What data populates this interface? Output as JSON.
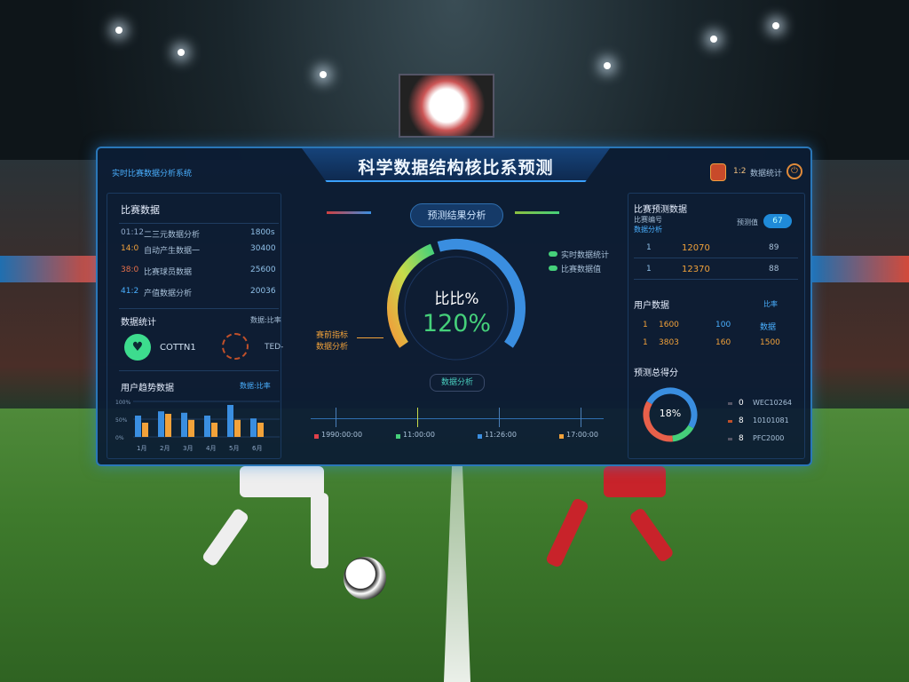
{
  "header": {
    "title": "科学数据结构核比系预测",
    "left_caption": "实时比赛数据分析系统",
    "score": "1:2",
    "score_label": "数据统计"
  },
  "left": {
    "match_title": "比赛数据",
    "rows": [
      {
        "time": "01:12",
        "label": "二三元数据分析",
        "value": "1800s"
      },
      {
        "time": "14:0",
        "label": "自动产生数据一",
        "value": "30400"
      },
      {
        "time": "38:0",
        "label": "比赛球员数据",
        "value": "25600"
      },
      {
        "time": "41:2",
        "label": "产值数据分析",
        "value": "20036"
      }
    ],
    "stats_title": "数据统计",
    "stats_meta": "数据:比率",
    "stats_value": "COTTN1",
    "stats_side": "TED-",
    "trend_title": "用户趋势数据",
    "trend_legend": "数据:比率",
    "chart_data": {
      "type": "bar",
      "categories": [
        "1月",
        "2月",
        "3月",
        "4月",
        "5月",
        "6月"
      ],
      "yticks": [
        "100%",
        "50%",
        "0%"
      ],
      "ylim": [
        0,
        100
      ],
      "series": [
        {
          "values": [
            60,
            72,
            68,
            60,
            90,
            52
          ],
          "color": "#3a8ee0"
        },
        {
          "values": [
            40,
            65,
            48,
            40,
            48,
            40
          ],
          "color": "#f2a23a"
        }
      ]
    }
  },
  "center": {
    "analyze_button": "预测结果分析",
    "gauge_label": "比比%",
    "gauge_value": "120%",
    "gauge_fraction": 0.75,
    "left_note_1": "赛前指标",
    "left_note_2": "数据分析",
    "legend": [
      "实时数据统计",
      "比赛数据值"
    ],
    "data_pill": "数据分析",
    "timeline": [
      {
        "label": "1990:00:00",
        "color": "#e0404a"
      },
      {
        "label": "11:00:00",
        "color": "#45d07a"
      },
      {
        "label": "11:26:00",
        "color": "#3a8ee0"
      },
      {
        "label": "17:00:00",
        "color": "#f2a23a"
      }
    ]
  },
  "right": {
    "pred_title": "比赛预测数据",
    "pred_sub1": "比赛编号",
    "pred_sub2": "数据分析",
    "toggle_label": "预测值",
    "toggle_value": "67",
    "pred_rows": [
      {
        "a": "1",
        "b": "12070",
        "c": "89"
      },
      {
        "a": "1",
        "b": "12370",
        "c": "88"
      }
    ],
    "user_title": "用户数据",
    "user_meta": "比率",
    "user_rows": [
      {
        "a": "1",
        "b": "1600",
        "c": "100",
        "d": "数据"
      },
      {
        "a": "1",
        "b": "3803",
        "c": "160",
        "d": "1500"
      }
    ],
    "score_title": "预测总得分",
    "donut_label": "18%",
    "donut": [
      {
        "value": 0.5,
        "color": "#3a8ee0"
      },
      {
        "value": 0.15,
        "color": "#45d07a"
      },
      {
        "value": 0.35,
        "color": "#e8604a"
      }
    ],
    "legend": [
      {
        "n": "0",
        "t": "WEC10264"
      },
      {
        "n": "8",
        "t": "10101081"
      },
      {
        "n": "8",
        "t": "PFC2000"
      }
    ]
  }
}
